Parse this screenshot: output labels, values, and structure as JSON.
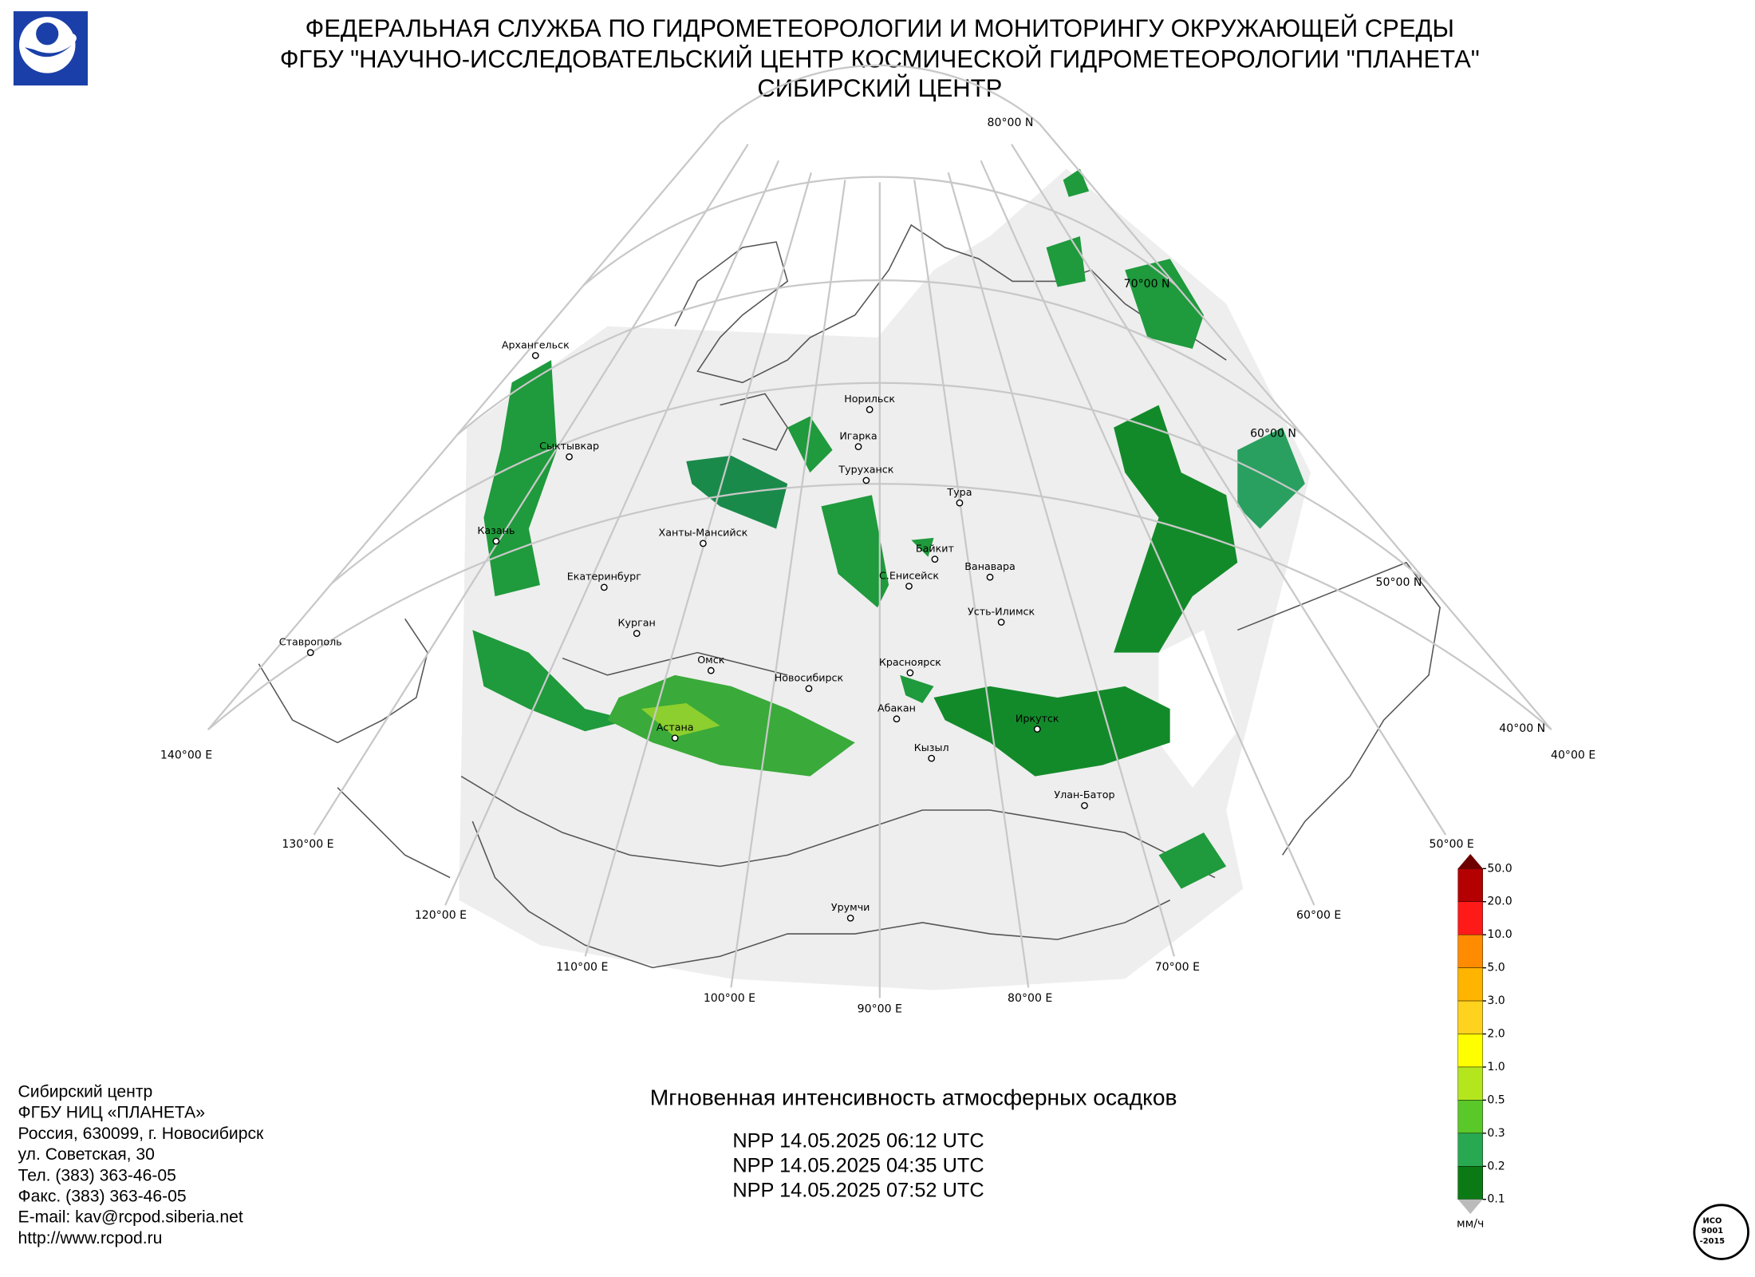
{
  "header": {
    "lines": [
      "ФЕДЕРАЛЬНАЯ СЛУЖБА ПО ГИДРОМЕТЕОРОЛОГИИ И МОНИТОРИНГУ ОКРУЖАЮЩЕЙ СРЕДЫ",
      "ФГБУ \"НАУЧНО-ИССЛЕДОВАТЕЛЬСКИЙ ЦЕНТР КОСМИЧЕСКОЙ ГИДРОМЕТЕОРОЛОГИИ \"ПЛАНЕТА\"",
      "СИБИРСКИЙ ЦЕНТР"
    ]
  },
  "map": {
    "parallels": [
      "80°00 N",
      "70°00 N",
      "60°00 N",
      "50°00 N",
      "40°00 N"
    ],
    "meridians": [
      "40°00 E",
      "50°00 E",
      "60°00 E",
      "70°00 E",
      "80°00 E",
      "90°00 E",
      "100°00 E",
      "110°00 E",
      "120°00 E",
      "130°00 E",
      "140°00 E"
    ],
    "cities": [
      "Архангельск",
      "Сыктывкар",
      "Казань",
      "Екатеринбург",
      "Курган",
      "Ставрополь",
      "Ханты-Мансийск",
      "Омск",
      "Астана",
      "Новосибирск",
      "Норильск",
      "Игарка",
      "Туруханск",
      "Тура",
      "Байкит",
      "С.Енисейск",
      "Ванавара",
      "Усть-Илимск",
      "Красноярск",
      "Абакан",
      "Кызыл",
      "Иркутск",
      "Улан-Батор",
      "Урумчи"
    ]
  },
  "legend": {
    "labels": [
      "50.0",
      "20.0",
      "10.0",
      "5.0",
      "3.0",
      "2.0",
      "1.0",
      "0.5",
      "0.3",
      "0.2",
      "0.1"
    ],
    "colors": [
      "#b40000",
      "#ff1a1a",
      "#ff8c00",
      "#ffb400",
      "#ffd21e",
      "#ffff00",
      "#b4e61e",
      "#5ac828",
      "#28a850",
      "#1e8a5a",
      "#0c7a14"
    ],
    "unit": "мм/ч"
  },
  "product": {
    "title": "Мгновенная интенсивность атмосферных осадков",
    "passes": [
      "NPP 14.05.2025  06:12 UTC",
      "NPP 14.05.2025  04:35 UTC",
      "NPP 14.05.2025  07:52 UTC"
    ]
  },
  "footer": {
    "lines": [
      "Сибирский центр",
      "ФГБУ НИЦ «ПЛАНЕТА»",
      "Россия, 630099, г. Новосибирск",
      "ул. Советская, 30",
      "Тел. (383) 363-46-05",
      "Факс. (383) 363-46-05",
      "E-mail: kav@rcpod.siberia.net",
      "http://www.rcpod.ru"
    ]
  },
  "iso": {
    "lines": [
      "ИСО",
      "9001",
      "-2015"
    ]
  }
}
